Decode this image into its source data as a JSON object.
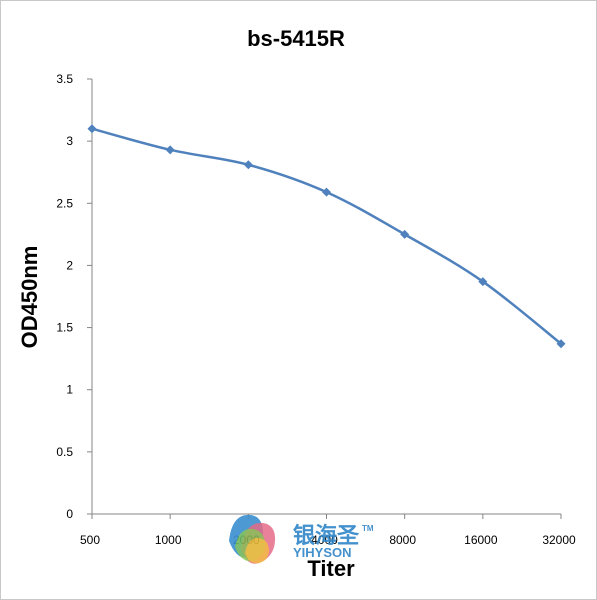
{
  "chart_data": {
    "type": "line",
    "title": "bs-5415R",
    "xlabel": "Titer",
    "ylabel": "OD450nm",
    "categories": [
      "500",
      "1000",
      "2000",
      "4000",
      "8000",
      "16000",
      "32000"
    ],
    "series": [
      {
        "values": [
          3.1,
          2.93,
          2.81,
          2.59,
          2.25,
          1.87,
          1.37
        ]
      }
    ],
    "ylim": [
      0,
      3.5
    ],
    "yticks": [
      "0",
      "0.5",
      "1",
      "1.5",
      "2",
      "2.5",
      "3",
      "3.5"
    ],
    "grid": false,
    "legend": "none"
  },
  "colors": {
    "series": "#4F81BD",
    "axis": "#868686"
  },
  "watermark": {
    "chinese": "银海圣",
    "english": "YIHYSON",
    "tm": "TM"
  }
}
